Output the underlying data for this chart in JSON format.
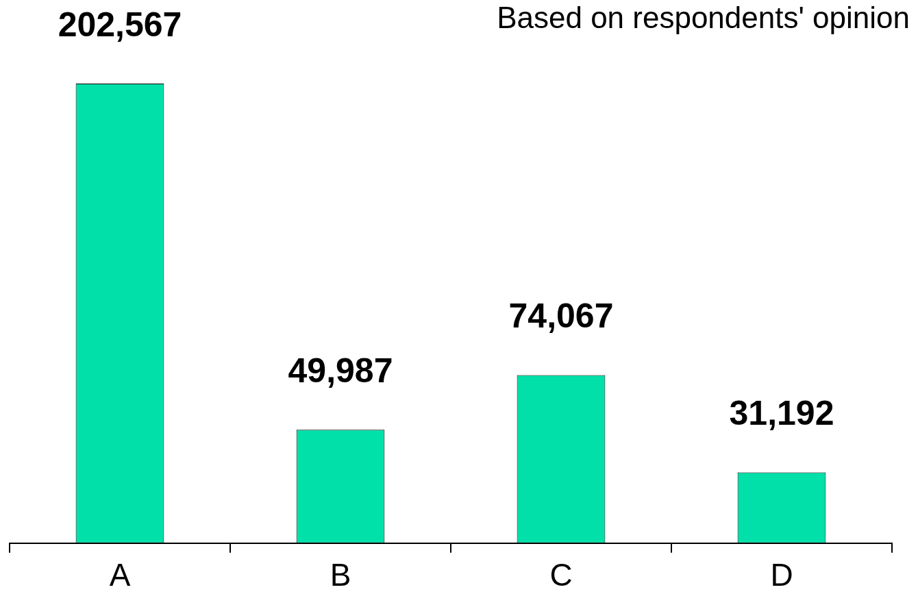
{
  "chart_data": {
    "type": "bar",
    "subtitle": "Based on respondents' opinion",
    "categories": [
      "A",
      "B",
      "C",
      "D"
    ],
    "values": [
      202567,
      49987,
      74067,
      31192
    ],
    "color": "#00e0a8",
    "value_labels": [
      "202,567",
      "49,987",
      "74,067",
      "31,192"
    ]
  }
}
